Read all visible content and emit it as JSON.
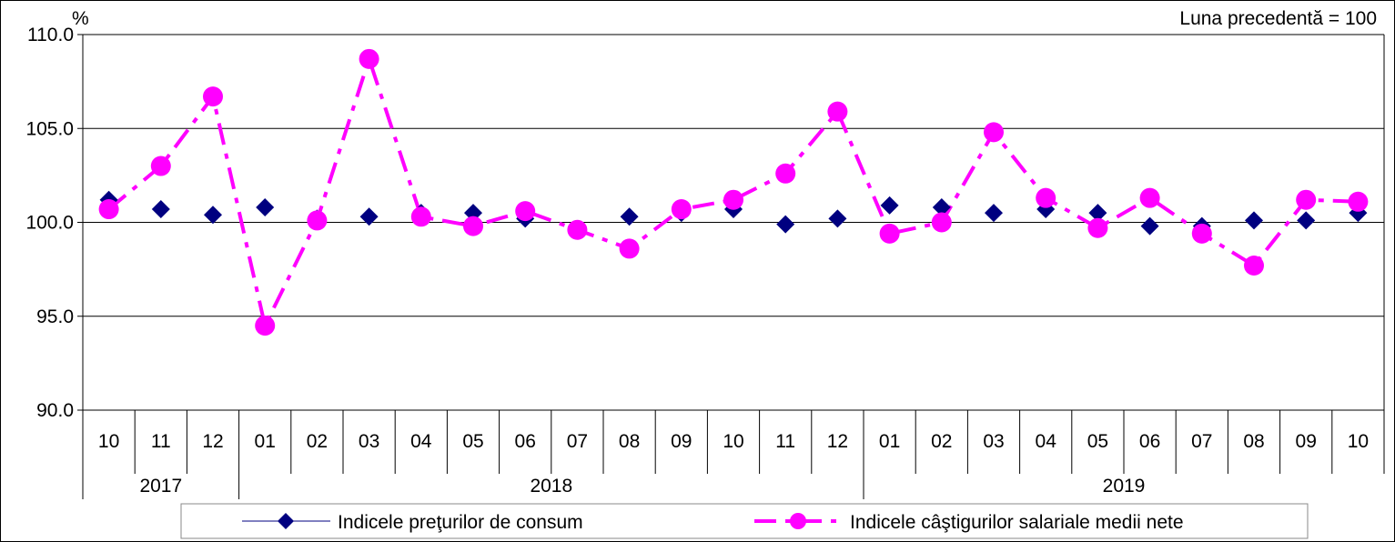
{
  "chart_data": {
    "type": "line",
    "unit_label": "%",
    "note": "Luna precedentă = 100",
    "ylim": [
      90.0,
      110.0
    ],
    "yticks": [
      "110.0",
      "105.0",
      "100.0",
      "95.0",
      "90.0"
    ],
    "ytick_values": [
      110,
      105,
      100,
      95,
      90
    ],
    "grid": true,
    "legend_position": "bottom",
    "categories": [
      "10",
      "11",
      "12",
      "01",
      "02",
      "03",
      "04",
      "05",
      "06",
      "07",
      "08",
      "09",
      "10",
      "11",
      "12",
      "01",
      "02",
      "03",
      "04",
      "05",
      "06",
      "07",
      "08",
      "09",
      "10"
    ],
    "year_groups": [
      {
        "label": "2017",
        "count": 3
      },
      {
        "label": "2018",
        "count": 12
      },
      {
        "label": "2019",
        "count": 10
      }
    ],
    "series": [
      {
        "name": "Indicele preţurilor de consum",
        "color": "#000080",
        "marker": "diamond",
        "line": "none",
        "values": [
          101.2,
          100.7,
          100.4,
          100.8,
          100.2,
          100.3,
          100.5,
          100.5,
          100.2,
          99.6,
          100.3,
          100.5,
          100.7,
          99.9,
          100.2,
          100.9,
          100.8,
          100.5,
          100.7,
          100.5,
          99.8,
          99.8,
          100.1,
          100.1,
          100.5
        ]
      },
      {
        "name": "Indicele câştigurilor salariale medii nete",
        "color": "#FF00FF",
        "marker": "circle",
        "line": "dash-dot",
        "values": [
          100.7,
          103.0,
          106.7,
          94.5,
          100.1,
          108.7,
          100.3,
          99.8,
          100.6,
          99.6,
          98.6,
          100.7,
          101.2,
          102.6,
          105.9,
          99.4,
          100.0,
          104.8,
          101.3,
          99.7,
          101.3,
          99.4,
          97.7,
          101.2,
          101.1
        ]
      }
    ]
  }
}
